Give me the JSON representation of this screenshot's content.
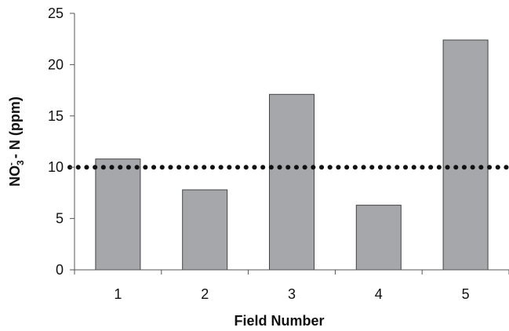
{
  "chart_data": {
    "type": "bar",
    "categories": [
      "1",
      "2",
      "3",
      "4",
      "5"
    ],
    "values": [
      10.8,
      7.8,
      17.1,
      6.3,
      22.4
    ],
    "title": "",
    "xlabel": "Field Number",
    "ylabel": "NO3- - N (ppm)",
    "ylabel_parts": {
      "main": "NO",
      "subscript": "3",
      "superscript": "-",
      "rest": " - N (ppm)"
    },
    "ylim": [
      0,
      25
    ],
    "yticks": [
      0,
      5,
      10,
      15,
      20,
      25
    ],
    "reference_line": {
      "value": 10,
      "style": "dotted",
      "color": "#111111"
    },
    "grid": false,
    "legend": "none",
    "colors": {
      "bar_fill": "#a6a7aa",
      "bar_stroke": "#444444",
      "axis": "#555555"
    }
  }
}
